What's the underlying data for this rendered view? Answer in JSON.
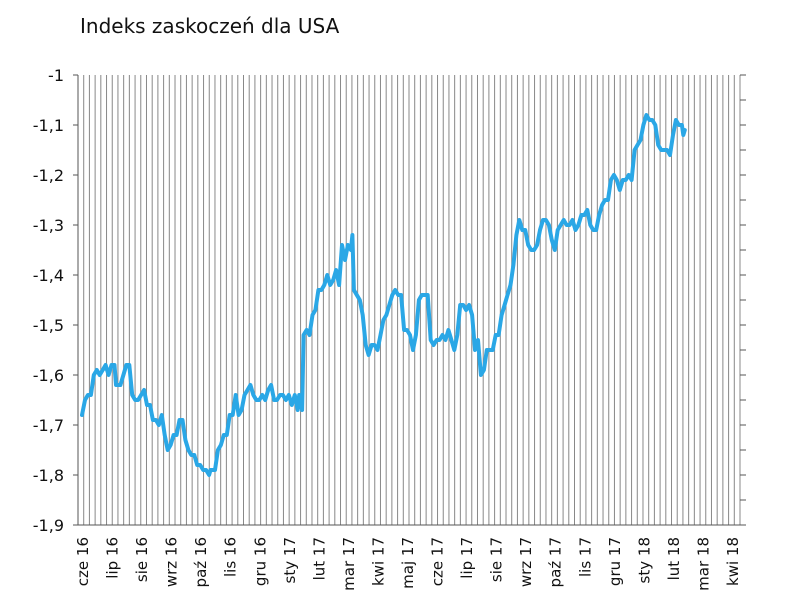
{
  "chart_data": {
    "type": "line",
    "title": "Indeks zaskoczeń dla USA",
    "xlabel": "",
    "ylabel": "",
    "ylim": [
      -1.9,
      -1.0
    ],
    "y_ticks": [
      -1.0,
      -1.1,
      -1.2,
      -1.3,
      -1.4,
      -1.5,
      -1.6,
      -1.7,
      -1.8,
      -1.9
    ],
    "y_tick_labels": [
      "-1",
      "-1,1",
      "-1,2",
      "-1,3",
      "-1,4",
      "-1,5",
      "-1,6",
      "-1,7",
      "-1,8",
      "-1,9"
    ],
    "x_tick_labels": [
      "cze 16",
      "lip 16",
      "sie 16",
      "wrz 16",
      "paź 16",
      "lis 16",
      "gru 16",
      "sty 17",
      "lut 17",
      "mar 17",
      "kwi 17",
      "maj 17",
      "cze 17",
      "lip 17",
      "sie 17",
      "wrz 17",
      "paź 17",
      "lis 17",
      "gru 17",
      "sty 18",
      "lut 18",
      "mar 18",
      "kwi 18"
    ],
    "x_range": [
      0,
      22.2
    ],
    "grid": "vertical",
    "line_color": "#2aa7e6",
    "series": [
      {
        "values": [
          [
            0.0,
            -1.68
          ],
          [
            0.1,
            -1.65
          ],
          [
            0.2,
            -1.64
          ],
          [
            0.3,
            -1.64
          ],
          [
            0.4,
            -1.6
          ],
          [
            0.5,
            -1.59
          ],
          [
            0.6,
            -1.6
          ],
          [
            0.7,
            -1.59
          ],
          [
            0.8,
            -1.58
          ],
          [
            0.9,
            -1.6
          ],
          [
            1.0,
            -1.58
          ],
          [
            1.1,
            -1.58
          ],
          [
            1.15,
            -1.62
          ],
          [
            1.3,
            -1.62
          ],
          [
            1.4,
            -1.6
          ],
          [
            1.5,
            -1.58
          ],
          [
            1.6,
            -1.58
          ],
          [
            1.7,
            -1.64
          ],
          [
            1.8,
            -1.65
          ],
          [
            1.9,
            -1.65
          ],
          [
            2.0,
            -1.64
          ],
          [
            2.1,
            -1.63
          ],
          [
            2.2,
            -1.66
          ],
          [
            2.3,
            -1.66
          ],
          [
            2.4,
            -1.69
          ],
          [
            2.5,
            -1.69
          ],
          [
            2.6,
            -1.7
          ],
          [
            2.7,
            -1.68
          ],
          [
            2.8,
            -1.72
          ],
          [
            2.9,
            -1.75
          ],
          [
            3.0,
            -1.74
          ],
          [
            3.1,
            -1.72
          ],
          [
            3.2,
            -1.72
          ],
          [
            3.3,
            -1.69
          ],
          [
            3.4,
            -1.69
          ],
          [
            3.5,
            -1.73
          ],
          [
            3.6,
            -1.75
          ],
          [
            3.7,
            -1.76
          ],
          [
            3.8,
            -1.76
          ],
          [
            3.9,
            -1.78
          ],
          [
            4.0,
            -1.78
          ],
          [
            4.1,
            -1.79
          ],
          [
            4.2,
            -1.79
          ],
          [
            4.3,
            -1.8
          ],
          [
            4.35,
            -1.79
          ],
          [
            4.5,
            -1.79
          ],
          [
            4.6,
            -1.75
          ],
          [
            4.7,
            -1.74
          ],
          [
            4.8,
            -1.72
          ],
          [
            4.9,
            -1.72
          ],
          [
            5.0,
            -1.68
          ],
          [
            5.1,
            -1.68
          ],
          [
            5.2,
            -1.64
          ],
          [
            5.3,
            -1.68
          ],
          [
            5.4,
            -1.67
          ],
          [
            5.5,
            -1.64
          ],
          [
            5.6,
            -1.63
          ],
          [
            5.7,
            -1.62
          ],
          [
            5.8,
            -1.64
          ],
          [
            5.9,
            -1.65
          ],
          [
            6.0,
            -1.65
          ],
          [
            6.1,
            -1.64
          ],
          [
            6.2,
            -1.65
          ],
          [
            6.3,
            -1.63
          ],
          [
            6.4,
            -1.62
          ],
          [
            6.5,
            -1.65
          ],
          [
            6.6,
            -1.65
          ],
          [
            6.7,
            -1.64
          ],
          [
            6.8,
            -1.64
          ],
          [
            6.9,
            -1.65
          ],
          [
            7.0,
            -1.64
          ],
          [
            7.1,
            -1.66
          ],
          [
            7.2,
            -1.64
          ],
          [
            7.3,
            -1.67
          ],
          [
            7.35,
            -1.64
          ],
          [
            7.45,
            -1.67
          ],
          [
            7.5,
            -1.52
          ],
          [
            7.6,
            -1.51
          ],
          [
            7.7,
            -1.52
          ],
          [
            7.8,
            -1.48
          ],
          [
            7.9,
            -1.47
          ],
          [
            8.0,
            -1.43
          ],
          [
            8.1,
            -1.43
          ],
          [
            8.2,
            -1.42
          ],
          [
            8.3,
            -1.4
          ],
          [
            8.4,
            -1.42
          ],
          [
            8.5,
            -1.41
          ],
          [
            8.6,
            -1.39
          ],
          [
            8.7,
            -1.42
          ],
          [
            8.8,
            -1.34
          ],
          [
            8.9,
            -1.37
          ],
          [
            9.0,
            -1.34
          ],
          [
            9.1,
            -1.35
          ],
          [
            9.15,
            -1.32
          ],
          [
            9.2,
            -1.43
          ],
          [
            9.3,
            -1.44
          ],
          [
            9.4,
            -1.45
          ],
          [
            9.5,
            -1.48
          ],
          [
            9.6,
            -1.54
          ],
          [
            9.7,
            -1.56
          ],
          [
            9.8,
            -1.54
          ],
          [
            9.9,
            -1.54
          ],
          [
            10.0,
            -1.55
          ],
          [
            10.1,
            -1.52
          ],
          [
            10.2,
            -1.49
          ],
          [
            10.3,
            -1.48
          ],
          [
            10.4,
            -1.46
          ],
          [
            10.5,
            -1.44
          ],
          [
            10.6,
            -1.43
          ],
          [
            10.7,
            -1.44
          ],
          [
            10.8,
            -1.44
          ],
          [
            10.9,
            -1.51
          ],
          [
            11.0,
            -1.51
          ],
          [
            11.1,
            -1.52
          ],
          [
            11.2,
            -1.55
          ],
          [
            11.3,
            -1.52
          ],
          [
            11.4,
            -1.45
          ],
          [
            11.5,
            -1.44
          ],
          [
            11.6,
            -1.44
          ],
          [
            11.7,
            -1.44
          ],
          [
            11.8,
            -1.53
          ],
          [
            11.9,
            -1.54
          ],
          [
            12.0,
            -1.53
          ],
          [
            12.1,
            -1.53
          ],
          [
            12.2,
            -1.52
          ],
          [
            12.3,
            -1.53
          ],
          [
            12.4,
            -1.51
          ],
          [
            12.5,
            -1.53
          ],
          [
            12.6,
            -1.55
          ],
          [
            12.7,
            -1.52
          ],
          [
            12.8,
            -1.46
          ],
          [
            12.9,
            -1.46
          ],
          [
            13.0,
            -1.47
          ],
          [
            13.1,
            -1.46
          ],
          [
            13.2,
            -1.48
          ],
          [
            13.3,
            -1.55
          ],
          [
            13.4,
            -1.53
          ],
          [
            13.5,
            -1.6
          ],
          [
            13.6,
            -1.59
          ],
          [
            13.7,
            -1.55
          ],
          [
            13.8,
            -1.55
          ],
          [
            13.9,
            -1.55
          ],
          [
            14.0,
            -1.52
          ],
          [
            14.1,
            -1.52
          ],
          [
            14.2,
            -1.48
          ],
          [
            14.3,
            -1.46
          ],
          [
            14.4,
            -1.44
          ],
          [
            14.5,
            -1.42
          ],
          [
            14.6,
            -1.38
          ],
          [
            14.7,
            -1.32
          ],
          [
            14.8,
            -1.29
          ],
          [
            14.9,
            -1.31
          ],
          [
            15.0,
            -1.31
          ],
          [
            15.1,
            -1.34
          ],
          [
            15.2,
            -1.35
          ],
          [
            15.3,
            -1.35
          ],
          [
            15.4,
            -1.34
          ],
          [
            15.5,
            -1.31
          ],
          [
            15.6,
            -1.29
          ],
          [
            15.7,
            -1.29
          ],
          [
            15.8,
            -1.3
          ],
          [
            15.9,
            -1.33
          ],
          [
            16.0,
            -1.35
          ],
          [
            16.1,
            -1.31
          ],
          [
            16.2,
            -1.3
          ],
          [
            16.3,
            -1.29
          ],
          [
            16.4,
            -1.3
          ],
          [
            16.5,
            -1.3
          ],
          [
            16.6,
            -1.29
          ],
          [
            16.7,
            -1.31
          ],
          [
            16.8,
            -1.3
          ],
          [
            16.9,
            -1.28
          ],
          [
            17.0,
            -1.28
          ],
          [
            17.1,
            -1.27
          ],
          [
            17.2,
            -1.3
          ],
          [
            17.3,
            -1.31
          ],
          [
            17.4,
            -1.31
          ],
          [
            17.5,
            -1.28
          ],
          [
            17.6,
            -1.26
          ],
          [
            17.7,
            -1.25
          ],
          [
            17.8,
            -1.25
          ],
          [
            17.9,
            -1.21
          ],
          [
            18.0,
            -1.2
          ],
          [
            18.1,
            -1.21
          ],
          [
            18.2,
            -1.23
          ],
          [
            18.3,
            -1.21
          ],
          [
            18.4,
            -1.21
          ],
          [
            18.5,
            -1.2
          ],
          [
            18.6,
            -1.21
          ],
          [
            18.7,
            -1.15
          ],
          [
            18.8,
            -1.14
          ],
          [
            18.9,
            -1.13
          ],
          [
            19.0,
            -1.1
          ],
          [
            19.1,
            -1.08
          ],
          [
            19.2,
            -1.09
          ],
          [
            19.3,
            -1.09
          ],
          [
            19.4,
            -1.1
          ],
          [
            19.5,
            -1.14
          ],
          [
            19.6,
            -1.15
          ],
          [
            19.7,
            -1.15
          ],
          [
            19.8,
            -1.15
          ],
          [
            19.9,
            -1.16
          ],
          [
            20.0,
            -1.12
          ],
          [
            20.1,
            -1.09
          ],
          [
            20.2,
            -1.1
          ],
          [
            20.3,
            -1.1
          ],
          [
            20.35,
            -1.12
          ],
          [
            20.4,
            -1.11
          ]
        ]
      }
    ]
  }
}
